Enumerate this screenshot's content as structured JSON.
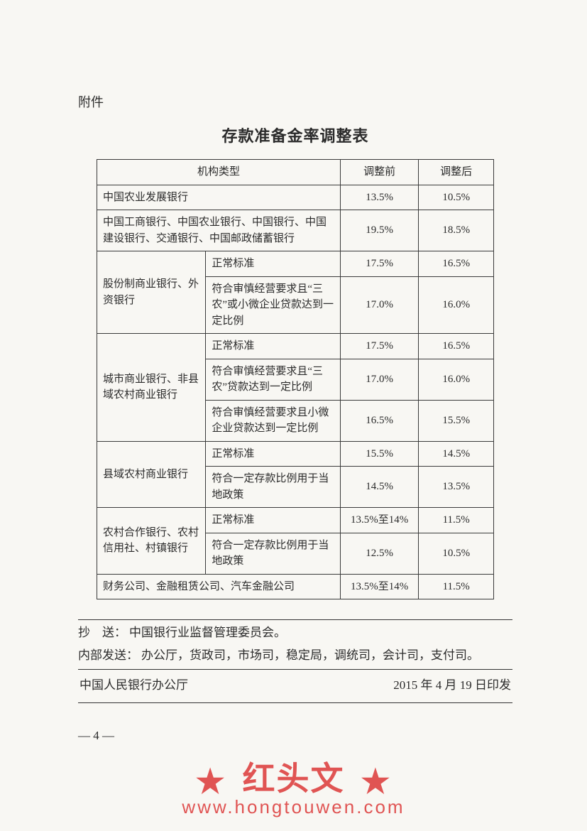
{
  "attachment_label": "附件",
  "title": "存款准备金率调整表",
  "table": {
    "headers": {
      "type": "机构类型",
      "before": "调整前",
      "after": "调整后"
    },
    "rows": [
      {
        "span": "full",
        "type": "中国农业发展银行",
        "before": "13.5%",
        "after": "10.5%"
      },
      {
        "span": "full",
        "type": "中国工商银行、中国农业银行、中国银行、中国建设银行、交通银行、中国邮政储蓄银行",
        "before": "19.5%",
        "after": "18.5%"
      },
      {
        "group": "股份制商业银行、外资银行",
        "rowspan": 2,
        "sub": "正常标准",
        "before": "17.5%",
        "after": "16.5%"
      },
      {
        "sub": "符合审慎经营要求且“三农”或小微企业贷款达到一定比例",
        "before": "17.0%",
        "after": "16.0%"
      },
      {
        "group": "城市商业银行、非县域农村商业银行",
        "rowspan": 3,
        "sub": "正常标准",
        "before": "17.5%",
        "after": "16.5%"
      },
      {
        "sub": "符合审慎经营要求且“三农”贷款达到一定比例",
        "before": "17.0%",
        "after": "16.0%"
      },
      {
        "sub": "符合审慎经营要求且小微企业贷款达到一定比例",
        "before": "16.5%",
        "after": "15.5%"
      },
      {
        "group": "县域农村商业银行",
        "rowspan": 2,
        "sub": "正常标准",
        "before": "15.5%",
        "after": "14.5%"
      },
      {
        "sub": "符合一定存款比例用于当地政策",
        "before": "14.5%",
        "after": "13.5%"
      },
      {
        "group": "农村合作银行、农村信用社、村镇银行",
        "rowspan": 2,
        "sub": "正常标准",
        "before": "13.5%至14%",
        "after": "11.5%"
      },
      {
        "sub": "符合一定存款比例用于当地政策",
        "before": "12.5%",
        "after": "10.5%"
      },
      {
        "span": "full",
        "type": "财务公司、金融租赁公司、汽车金融公司",
        "before": "13.5%至14%",
        "after": "11.5%"
      }
    ]
  },
  "footer": {
    "cc_label": "抄　送：",
    "cc_body": "中国银行业监督管理委员会。",
    "internal_label": "内部发送：",
    "internal_body": "办公厅，货政司，市场司，稳定局，调统司，会计司，支付司。",
    "issuer": "中国人民银行办公厅",
    "issue_date": "2015 年 4 月 19 日印发",
    "page_number": "— 4 —"
  },
  "watermark": {
    "star": "★",
    "text": "红头文",
    "url": "www.hongtouwen.com"
  }
}
